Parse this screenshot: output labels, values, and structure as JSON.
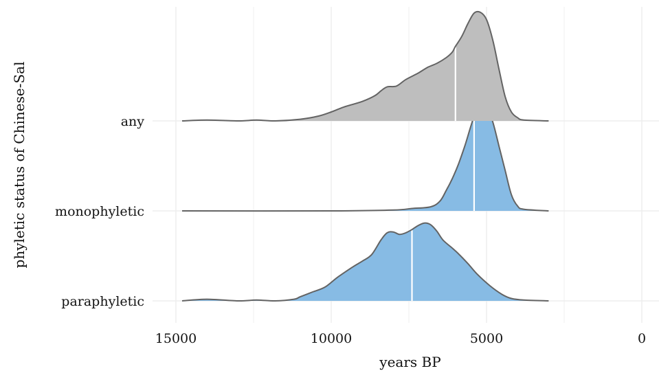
{
  "chart_data": {
    "type": "ridgeline-density",
    "xlabel": "years BP",
    "ylabel": "phyletic status of Chinese-Sal",
    "x_reversed": true,
    "xlim": [
      16000,
      -300
    ],
    "xticks": [
      15000,
      10000,
      5000,
      0
    ],
    "xtick_labels": [
      "15000",
      "10000",
      "5000",
      "0"
    ],
    "x_minor_gridlines": [
      12500,
      7500,
      2500
    ],
    "grid": true,
    "colors": {
      "any": "#bebebe",
      "monophyletic": "#87bbe4",
      "paraphyletic": "#87bbe4",
      "outline": "#636363",
      "median_line": "#ffffff",
      "grid": "#ebebeb"
    },
    "series": [
      {
        "name": "paraphyletic",
        "median": 7400,
        "points": [
          [
            14800,
            0.0
          ],
          [
            14000,
            0.02
          ],
          [
            13000,
            0.0
          ],
          [
            12400,
            0.01
          ],
          [
            11800,
            0.0
          ],
          [
            11200,
            0.02
          ],
          [
            11000,
            0.05
          ],
          [
            10600,
            0.11
          ],
          [
            10200,
            0.17
          ],
          [
            9800,
            0.29
          ],
          [
            9300,
            0.42
          ],
          [
            9000,
            0.49
          ],
          [
            8700,
            0.57
          ],
          [
            8400,
            0.75
          ],
          [
            8200,
            0.84
          ],
          [
            8000,
            0.85
          ],
          [
            7800,
            0.82
          ],
          [
            7600,
            0.84
          ],
          [
            7400,
            0.88
          ],
          [
            7200,
            0.93
          ],
          [
            7000,
            0.96
          ],
          [
            6800,
            0.94
          ],
          [
            6600,
            0.86
          ],
          [
            6400,
            0.75
          ],
          [
            6100,
            0.65
          ],
          [
            5900,
            0.58
          ],
          [
            5600,
            0.46
          ],
          [
            5300,
            0.33
          ],
          [
            4900,
            0.19
          ],
          [
            4500,
            0.08
          ],
          [
            4200,
            0.03
          ],
          [
            3800,
            0.01
          ],
          [
            3000,
            0.0
          ]
        ]
      },
      {
        "name": "monophyletic",
        "median": 5400,
        "points": [
          [
            14800,
            0.0
          ],
          [
            10000,
            0.0
          ],
          [
            8000,
            0.01
          ],
          [
            7400,
            0.03
          ],
          [
            6800,
            0.05
          ],
          [
            6500,
            0.12
          ],
          [
            6300,
            0.25
          ],
          [
            6100,
            0.4
          ],
          [
            5900,
            0.58
          ],
          [
            5700,
            0.8
          ],
          [
            5500,
            1.05
          ],
          [
            5300,
            1.28
          ],
          [
            5200,
            1.33
          ],
          [
            5000,
            1.3
          ],
          [
            4800,
            1.1
          ],
          [
            4600,
            0.8
          ],
          [
            4400,
            0.5
          ],
          [
            4200,
            0.2
          ],
          [
            4000,
            0.06
          ],
          [
            3800,
            0.02
          ],
          [
            3000,
            0.0
          ]
        ]
      },
      {
        "name": "any",
        "median": 6000,
        "points": [
          [
            14800,
            0.0
          ],
          [
            14000,
            0.01
          ],
          [
            13000,
            0.0
          ],
          [
            12400,
            0.01
          ],
          [
            11800,
            0.0
          ],
          [
            11000,
            0.02
          ],
          [
            10400,
            0.06
          ],
          [
            10000,
            0.11
          ],
          [
            9600,
            0.17
          ],
          [
            9000,
            0.24
          ],
          [
            8600,
            0.31
          ],
          [
            8400,
            0.37
          ],
          [
            8200,
            0.42
          ],
          [
            7900,
            0.43
          ],
          [
            7600,
            0.51
          ],
          [
            7200,
            0.59
          ],
          [
            6900,
            0.66
          ],
          [
            6600,
            0.71
          ],
          [
            6300,
            0.78
          ],
          [
            6100,
            0.85
          ],
          [
            6000,
            0.92
          ],
          [
            5800,
            1.04
          ],
          [
            5600,
            1.2
          ],
          [
            5400,
            1.33
          ],
          [
            5200,
            1.34
          ],
          [
            5000,
            1.25
          ],
          [
            4800,
            1.0
          ],
          [
            4600,
            0.64
          ],
          [
            4400,
            0.3
          ],
          [
            4200,
            0.11
          ],
          [
            4000,
            0.04
          ],
          [
            3800,
            0.01
          ],
          [
            3000,
            0.0
          ]
        ]
      }
    ]
  }
}
